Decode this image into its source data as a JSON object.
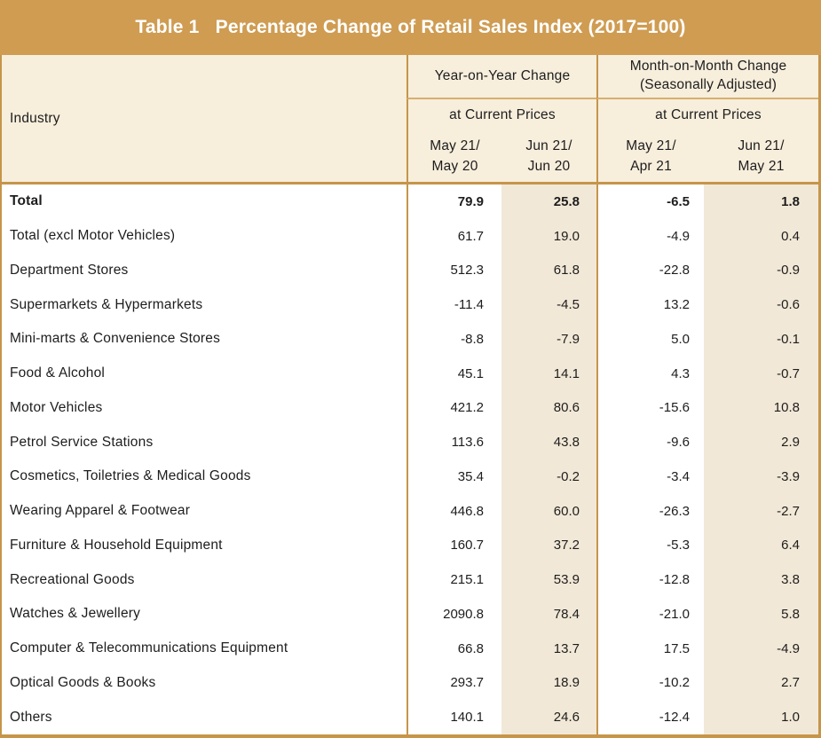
{
  "title": "Table 1   Percentage Change of Retail Sales Index (2017=100)",
  "colors": {
    "band_tan": "#cf9c52",
    "border_tan": "#c6954a",
    "header_cream": "#f7eedc",
    "shaded_column_cream": "#f2e8d7",
    "title_text": "#ffffff",
    "body_text": "#1d1d1d"
  },
  "chart_data": {
    "type": "table",
    "title": "Table 1   Percentage Change of Retail Sales Index (2017=100)",
    "row_header": "Industry",
    "groups": [
      {
        "title": "Year-on-Year Change",
        "title2": "",
        "subtitle": "at Current Prices",
        "periods": [
          {
            "l1": "May 21/",
            "l2": "May 20"
          },
          {
            "l1": "Jun 21/",
            "l2": "Jun 20"
          }
        ]
      },
      {
        "title": "Month-on-Month Change",
        "title2": "(Seasonally Adjusted)",
        "subtitle": "at Current Prices",
        "periods": [
          {
            "l1": "May 21/",
            "l2": "Apr 21"
          },
          {
            "l1": "Jun 21/",
            "l2": "May 21"
          }
        ]
      }
    ],
    "rows": [
      {
        "industry": "Total",
        "bold": true,
        "values": [
          "79.9",
          "25.8",
          "-6.5",
          "1.8"
        ]
      },
      {
        "industry": "Total (excl Motor Vehicles)",
        "bold": false,
        "values": [
          "61.7",
          "19.0",
          "-4.9",
          "0.4"
        ]
      },
      {
        "industry": "Department Stores",
        "bold": false,
        "values": [
          "512.3",
          "61.8",
          "-22.8",
          "-0.9"
        ]
      },
      {
        "industry": "Supermarkets & Hypermarkets",
        "bold": false,
        "values": [
          "-11.4",
          "-4.5",
          "13.2",
          "-0.6"
        ]
      },
      {
        "industry": "Mini-marts & Convenience Stores",
        "bold": false,
        "values": [
          "-8.8",
          "-7.9",
          "5.0",
          "-0.1"
        ]
      },
      {
        "industry": "Food & Alcohol",
        "bold": false,
        "values": [
          "45.1",
          "14.1",
          "4.3",
          "-0.7"
        ]
      },
      {
        "industry": "Motor Vehicles",
        "bold": false,
        "values": [
          "421.2",
          "80.6",
          "-15.6",
          "10.8"
        ]
      },
      {
        "industry": "Petrol Service Stations",
        "bold": false,
        "values": [
          "113.6",
          "43.8",
          "-9.6",
          "2.9"
        ]
      },
      {
        "industry": "Cosmetics, Toiletries & Medical Goods",
        "bold": false,
        "values": [
          "35.4",
          "-0.2",
          "-3.4",
          "-3.9"
        ]
      },
      {
        "industry": "Wearing Apparel & Footwear",
        "bold": false,
        "values": [
          "446.8",
          "60.0",
          "-26.3",
          "-2.7"
        ]
      },
      {
        "industry": "Furniture & Household Equipment",
        "bold": false,
        "values": [
          "160.7",
          "37.2",
          "-5.3",
          "6.4"
        ]
      },
      {
        "industry": "Recreational Goods",
        "bold": false,
        "values": [
          "215.1",
          "53.9",
          "-12.8",
          "3.8"
        ]
      },
      {
        "industry": "Watches & Jewellery",
        "bold": false,
        "values": [
          "2090.8",
          "78.4",
          "-21.0",
          "5.8"
        ]
      },
      {
        "industry": "Computer  & Telecommunications Equipment",
        "bold": false,
        "values": [
          "66.8",
          "13.7",
          "17.5",
          "-4.9"
        ]
      },
      {
        "industry": "Optical Goods & Books",
        "bold": false,
        "values": [
          "293.7",
          "18.9",
          "-10.2",
          "2.7"
        ]
      },
      {
        "industry": "Others",
        "bold": false,
        "values": [
          "140.1",
          "24.6",
          "-12.4",
          "1.0"
        ]
      }
    ]
  }
}
